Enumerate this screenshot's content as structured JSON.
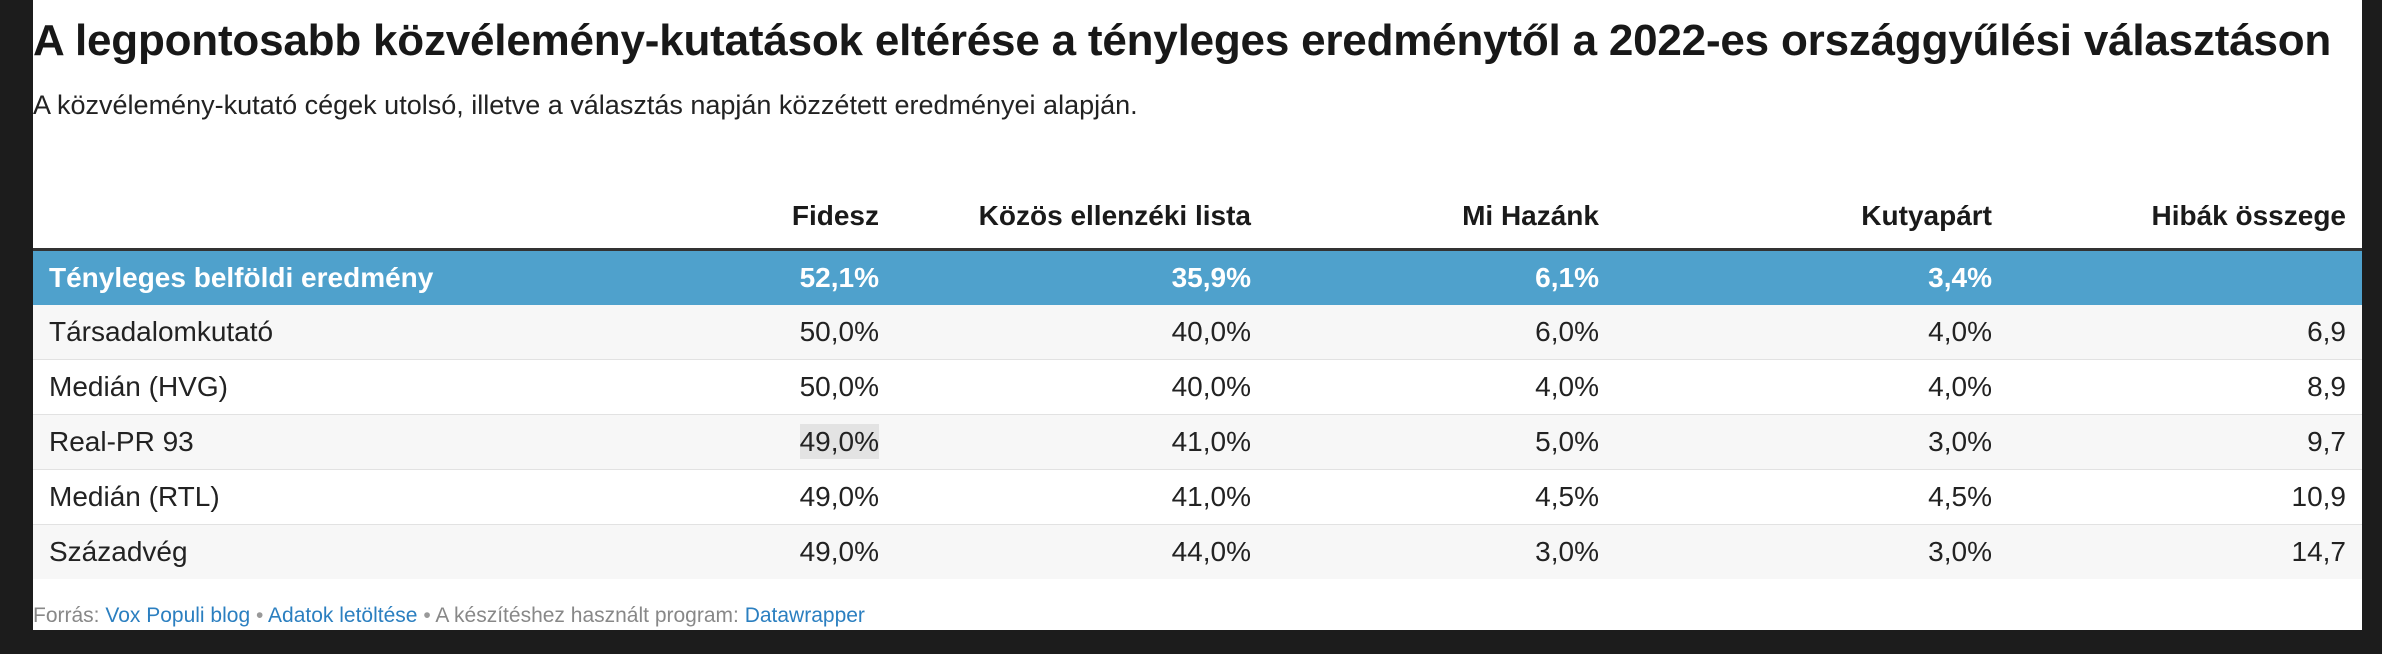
{
  "title": "A legpontosabb közvélemény-kutatások eltérése a tényleges eredménytől a 2022-es országgyűlési választáson",
  "subtitle": "A közvélemény-kutató cégek utolsó, illetve a választás napján közzétett eredményei alapján.",
  "chart_data": {
    "type": "table",
    "columns": [
      "",
      "Fidesz",
      "Közös ellenzéki lista",
      "Mi Hazánk",
      "Kutyapárt",
      "Hibák összege"
    ],
    "actual": {
      "label": "Tényleges belföldi eredmény",
      "cells": [
        "52,1%",
        "35,9%",
        "6,1%",
        "3,4%",
        ""
      ]
    },
    "rows": [
      {
        "label": "Társadalomkutató",
        "cells": [
          "50,0%",
          "40,0%",
          "6,0%",
          "4,0%",
          "6,9"
        ]
      },
      {
        "label": "Medián (HVG)",
        "cells": [
          "50,0%",
          "40,0%",
          "4,0%",
          "4,0%",
          "8,9"
        ]
      },
      {
        "label": "Real-PR 93",
        "cells": [
          "49,0%",
          "41,0%",
          "5,0%",
          "3,0%",
          "9,7"
        ]
      },
      {
        "label": "Medián (RTL)",
        "cells": [
          "49,0%",
          "41,0%",
          "4,5%",
          "4,5%",
          "10,9"
        ]
      },
      {
        "label": "Századvég",
        "cells": [
          "49,0%",
          "44,0%",
          "3,0%",
          "3,0%",
          "14,7"
        ]
      }
    ],
    "colors": {
      "highlight_row": "#4fa1cc",
      "link": "#2b7fc0"
    }
  },
  "footer": {
    "source_prefix": "Forrás:",
    "source_link": "Vox Populi blog",
    "separator": "•",
    "download_link": "Adatok letöltése",
    "tool_prefix": "A készítéshez használt program:",
    "tool_link": "Datawrapper"
  }
}
